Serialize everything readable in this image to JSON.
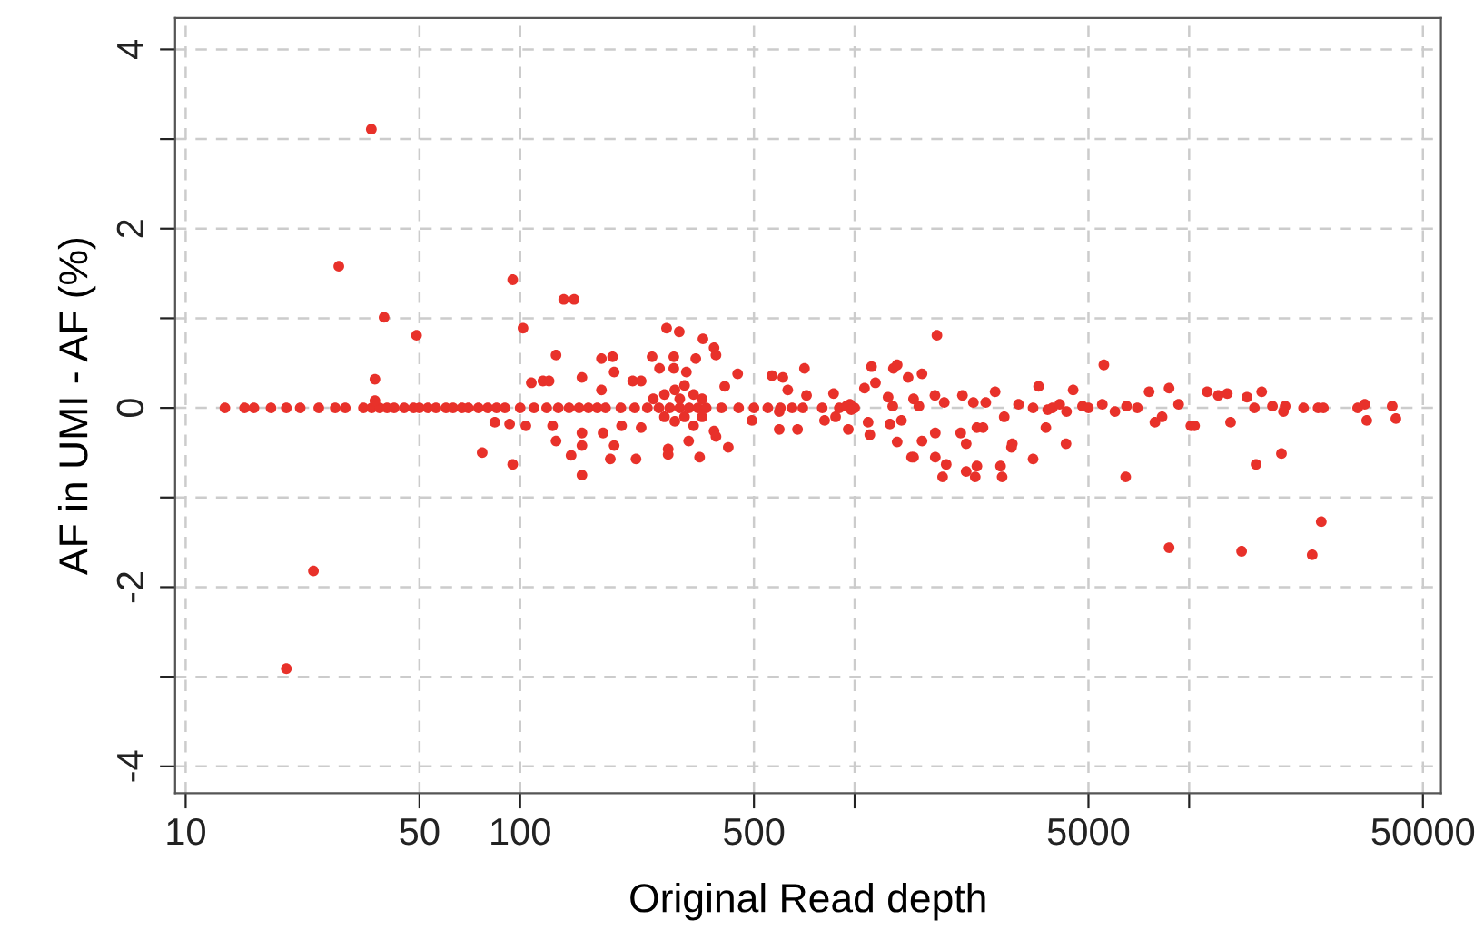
{
  "chart_data": {
    "type": "scatter",
    "xlabel": "Original Read depth",
    "ylabel": "AF in UMI - AF (%)",
    "log": "x",
    "grid": true,
    "marker": "circle",
    "legend": false,
    "xlim": [
      9.3,
      56600
    ],
    "ylim": [
      -4.3,
      4.35
    ],
    "xticks": [
      10,
      50,
      100,
      500,
      {
        "value": 1000,
        "label": null
      },
      5000,
      {
        "value": 10000,
        "label": null
      },
      50000
    ],
    "yticks": [
      -4,
      {
        "value": -3,
        "label": null
      },
      -2,
      {
        "value": -1,
        "label": null
      },
      0,
      {
        "value": 1,
        "label": null
      },
      2,
      {
        "value": 3,
        "label": null
      },
      4
    ],
    "series": [
      {
        "color": "#e8312a",
        "x": [
          13.1,
          15,
          16,
          18,
          20,
          22,
          25,
          28,
          30,
          34,
          36,
          38,
          40,
          42,
          45,
          48,
          50,
          53,
          56,
          60,
          63,
          67,
          70,
          75,
          80,
          85,
          90,
          100,
          110,
          120,
          130,
          140,
          150,
          160,
          170,
          180,
          200,
          220,
          240,
          260,
          280,
          300,
          320,
          340,
          360,
          400,
          450,
          500,
          550,
          600,
          650,
          700,
          800,
          900,
          1000,
          35.9,
          28.7,
          39.2,
          49,
          36.8,
          36.8,
          24.1,
          20,
          95,
          102,
          108,
          84,
          93,
          104,
          77,
          95,
          135,
          145,
          128,
          117,
          122,
          153,
          175,
          189,
          191,
          175,
          217,
          230,
          248,
          274,
          299,
          352,
          380,
          385,
          261,
          288,
          288,
          314,
          335,
          447,
          409,
          566,
          610,
          708,
          631,
          718,
          865,
          968,
          125,
          128,
          142,
          153,
          153,
          153,
          177,
          191,
          186,
          222,
          201,
          230,
          277,
          277,
          319,
          344,
          380,
          385,
          419,
          493,
          595,
          595,
          675,
          813,
          877,
          957,
          250,
          270,
          290,
          300,
          310,
          330,
          350,
          270,
          290,
          310,
          330,
          350,
          1762,
          5560,
          1123,
          1306,
          1340,
          1445,
          1590,
          1070,
          1154,
          945,
          977,
          1259,
          1300,
          1500,
          1556,
          1738,
          1853,
          2100,
          2264,
          2466,
          2630,
          2800,
          3090,
          3415,
          3548,
          3776,
          4500,
          3900,
          4100,
          4300,
          4800,
          1097,
          1110,
          1275,
          1380,
          1340,
          1480,
          1500,
          1590,
          1742,
          1742,
          1878,
          1832,
          2075,
          2155,
          2155,
          2320,
          2293,
          2320,
          2420,
          2730,
          2760,
          2944,
          2960,
          3415,
          3730,
          4285,
          6460,
          5000,
          5500,
          6000,
          6500,
          7000,
          7590,
          8710,
          9300,
          8300,
          7900,
          10120,
          10380,
          11320,
          12220,
          13000,
          13300,
          14890,
          15670,
          16480,
          17750,
          19140,
          19370,
          21980,
          24290,
          25200,
          31900,
          33500,
          33960,
          40460,
          41500,
          15850,
          18880,
          8710,
          14350,
          23330,
          24830
        ],
        "values": [
          0,
          0,
          0,
          0,
          0,
          0,
          0,
          0,
          0,
          0,
          0,
          0,
          0,
          0,
          0,
          0,
          0,
          0,
          0,
          0,
          0,
          0,
          0,
          0,
          0,
          0,
          0,
          0,
          0,
          0,
          0,
          0,
          0,
          0,
          0,
          0,
          0,
          0,
          0,
          0,
          0,
          0,
          0,
          0,
          0,
          0,
          0,
          0,
          0,
          0,
          0,
          0,
          0,
          0,
          0,
          3.11,
          1.58,
          1.01,
          0.81,
          0.32,
          0.08,
          -1.82,
          -2.91,
          1.43,
          0.89,
          0.28,
          -0.16,
          -0.18,
          -0.2,
          -0.5,
          -0.63,
          1.21,
          1.21,
          0.59,
          0.3,
          0.3,
          0.34,
          0.55,
          0.57,
          0.4,
          0.2,
          0.3,
          0.3,
          0.57,
          0.89,
          0.85,
          0.77,
          0.67,
          0.59,
          0.44,
          0.57,
          0.44,
          0.4,
          0.55,
          0.38,
          0.24,
          0.36,
          0.34,
          0.44,
          0.2,
          0.14,
          0.16,
          0.04,
          -0.2,
          -0.37,
          -0.53,
          -0.28,
          -0.42,
          -0.75,
          -0.28,
          -0.42,
          -0.57,
          -0.57,
          -0.2,
          -0.22,
          -0.46,
          -0.52,
          -0.37,
          -0.55,
          -0.26,
          -0.32,
          -0.44,
          -0.14,
          -0.04,
          -0.24,
          -0.24,
          -0.14,
          -0.1,
          -0.24,
          0.1,
          0.15,
          0.2,
          0.1,
          0.25,
          0.15,
          0.1,
          -0.1,
          -0.15,
          -0.1,
          -0.2,
          -0.1,
          0.81,
          0.48,
          0.46,
          0.44,
          0.48,
          0.34,
          0.38,
          0.22,
          0.28,
          0.02,
          -0.02,
          0.12,
          0.02,
          0.1,
          0.02,
          0.14,
          0.06,
          0.14,
          0.06,
          0.06,
          0.18,
          -0.1,
          0.04,
          0,
          0.24,
          -0.02,
          0.2,
          0,
          0.04,
          -0.04,
          0.02,
          -0.16,
          -0.3,
          -0.18,
          -0.14,
          -0.38,
          -0.55,
          -0.55,
          -0.37,
          -0.28,
          -0.55,
          -0.63,
          -0.77,
          -0.28,
          -0.4,
          -0.71,
          -0.65,
          -0.77,
          -0.22,
          -0.22,
          -0.65,
          -0.77,
          -0.44,
          -0.4,
          -0.57,
          -0.22,
          -0.4,
          -0.77,
          0,
          0.04,
          -0.04,
          0.02,
          0,
          0.18,
          0.22,
          0.04,
          -0.1,
          -0.16,
          -0.2,
          -0.2,
          0.18,
          0.14,
          0.16,
          -0.16,
          0.12,
          0,
          0.18,
          0.02,
          -0.04,
          0.02,
          0,
          0,
          0,
          0,
          0.04,
          -0.14,
          0.02,
          -0.12,
          -0.63,
          -0.51,
          -1.56,
          -1.6,
          -1.64,
          -1.27
        ]
      }
    ]
  }
}
